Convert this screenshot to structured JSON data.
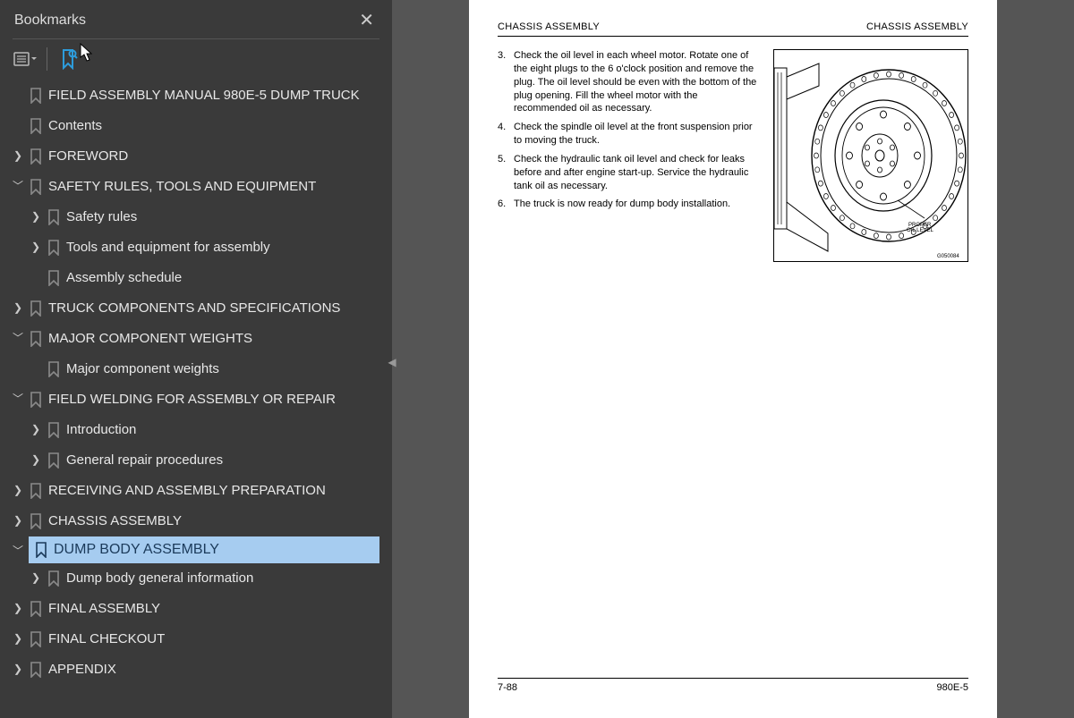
{
  "sidebar": {
    "title": "Bookmarks",
    "tree": [
      {
        "depth": 0,
        "chev": "none",
        "label": "FIELD ASSEMBLY MANUAL 980E-5 DUMP TRUCK",
        "interact": true
      },
      {
        "depth": 0,
        "chev": "none",
        "label": "Contents",
        "interact": true
      },
      {
        "depth": 0,
        "chev": "right",
        "label": "FOREWORD",
        "interact": true
      },
      {
        "depth": 0,
        "chev": "down",
        "label": "SAFETY RULES, TOOLS AND EQUIPMENT",
        "interact": true
      },
      {
        "depth": 1,
        "chev": "right",
        "label": "Safety rules",
        "interact": true
      },
      {
        "depth": 1,
        "chev": "right",
        "label": "Tools and equipment for assembly",
        "interact": true
      },
      {
        "depth": 1,
        "chev": "none",
        "label": "Assembly schedule",
        "interact": true
      },
      {
        "depth": 0,
        "chev": "right",
        "label": "TRUCK COMPONENTS AND SPECIFICATIONS",
        "interact": true
      },
      {
        "depth": 0,
        "chev": "down",
        "label": "MAJOR COMPONENT WEIGHTS",
        "interact": true
      },
      {
        "depth": 1,
        "chev": "none",
        "label": "Major component weights",
        "interact": true
      },
      {
        "depth": 0,
        "chev": "down",
        "label": "FIELD WELDING FOR ASSEMBLY OR REPAIR",
        "interact": true
      },
      {
        "depth": 1,
        "chev": "right",
        "label": "Introduction",
        "interact": true
      },
      {
        "depth": 1,
        "chev": "right",
        "label": "General repair procedures",
        "interact": true
      },
      {
        "depth": 0,
        "chev": "right",
        "label": "RECEIVING AND ASSEMBLY PREPARATION",
        "interact": true
      },
      {
        "depth": 0,
        "chev": "right",
        "label": "CHASSIS ASSEMBLY",
        "interact": true
      },
      {
        "depth": 0,
        "chev": "down",
        "label": "DUMP BODY ASSEMBLY",
        "interact": true,
        "selected": true
      },
      {
        "depth": 1,
        "chev": "right",
        "label": "Dump body general information",
        "interact": true
      },
      {
        "depth": 0,
        "chev": "right",
        "label": "FINAL ASSEMBLY",
        "interact": true
      },
      {
        "depth": 0,
        "chev": "right",
        "label": "FINAL CHECKOUT",
        "interact": true
      },
      {
        "depth": 0,
        "chev": "right",
        "label": "APPENDIX",
        "interact": true
      }
    ]
  },
  "page": {
    "header_left": "CHASSIS ASSEMBLY",
    "header_right": "CHASSIS ASSEMBLY",
    "steps": [
      {
        "n": "3.",
        "t": "Check the oil level in each wheel motor. Rotate one of the eight plugs to the 6 o'clock position and remove the plug. The oil level should be even with the bottom of the plug opening. Fill the wheel motor with the recommended oil as necessary."
      },
      {
        "n": "4.",
        "t": "Check the spindle oil level at the front suspension prior to moving the truck."
      },
      {
        "n": "5.",
        "t": "Check the hydraulic tank oil level and check for leaks before and after engine start-up. Service the hydraulic tank oil as necessary."
      },
      {
        "n": "6.",
        "t": "The truck is now ready for dump body installation."
      }
    ],
    "figure_label_1": "PROPER",
    "figure_label_2": "OIL LEVEL",
    "figure_code": "G050084",
    "footer_left": "7-88",
    "footer_right": "980E-5"
  },
  "colors": {
    "sidebar_bg": "#3a3a3a",
    "selected_bg": "#a6ccf0",
    "selected_fg": "#1b3a5a",
    "accent": "#2d9cdb"
  }
}
